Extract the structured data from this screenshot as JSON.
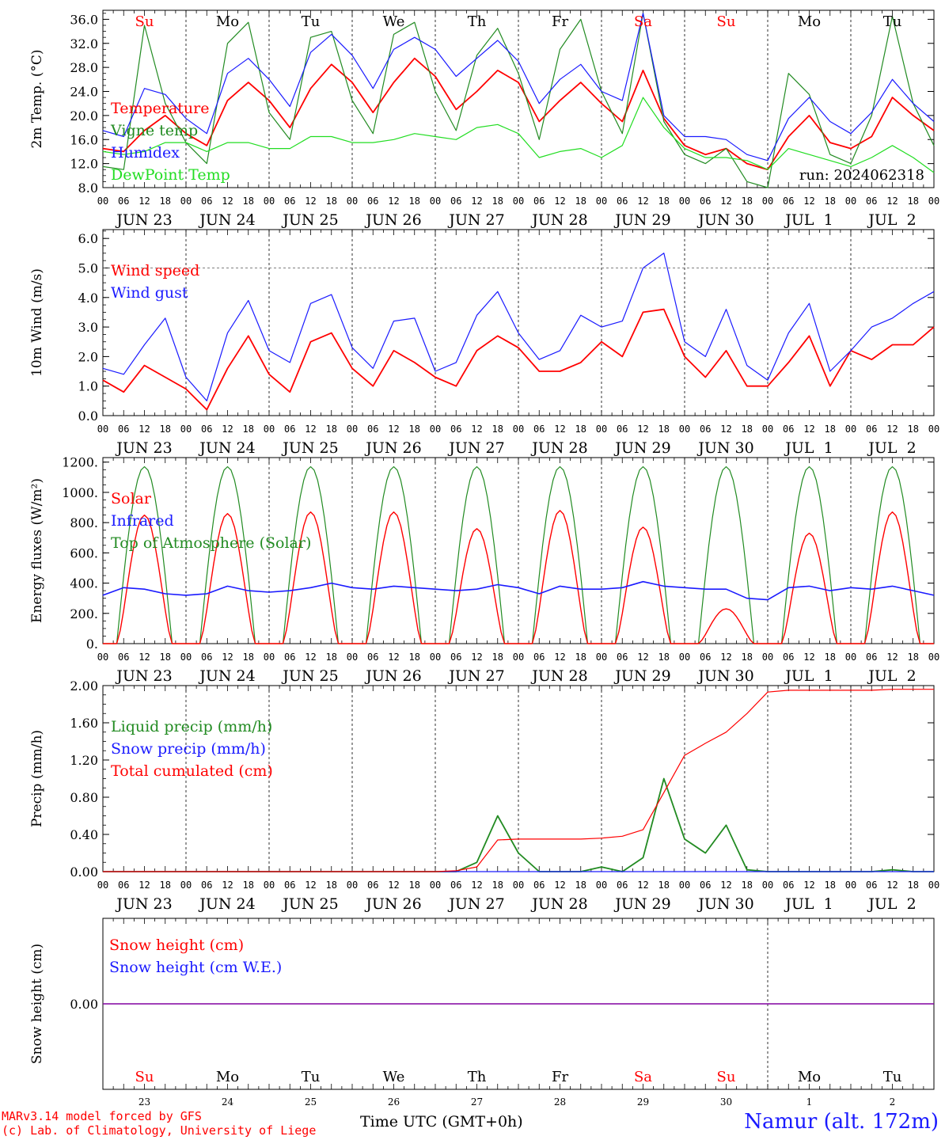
{
  "header": {
    "days": [
      {
        "abbr": "Su",
        "color": "#ff0000"
      },
      {
        "abbr": "Mo",
        "color": "#000000"
      },
      {
        "abbr": "Tu",
        "color": "#000000"
      },
      {
        "abbr": "We",
        "color": "#000000"
      },
      {
        "abbr": "Th",
        "color": "#000000"
      },
      {
        "abbr": "Fr",
        "color": "#000000"
      },
      {
        "abbr": "Sa",
        "color": "#ff0000"
      },
      {
        "abbr": "Su",
        "color": "#ff0000"
      },
      {
        "abbr": "Mo",
        "color": "#000000"
      },
      {
        "abbr": "Tu",
        "color": "#000000"
      }
    ],
    "date_labels": [
      "JUN 23",
      "JUN 24",
      "JUN 25",
      "JUN 26",
      "JUN 27",
      "JUN 28",
      "JUN 29",
      "JUN 30",
      "JUL  1",
      "JUL  2"
    ],
    "hour_ticks": [
      "00",
      "06",
      "12",
      "18"
    ],
    "day_numbers": [
      "23",
      "24",
      "25",
      "26",
      "27",
      "28",
      "29",
      "30",
      "1",
      "2"
    ]
  },
  "run_label": "run: 2024062318",
  "footer": {
    "credit_line1": "MARv3.14 model forced by GFS",
    "credit_line2": "(c) Lab. of Climatology, University of Liege",
    "xlabel": "Time UTC (GMT+0h)",
    "station": "Namur (alt. 172m)"
  },
  "colors": {
    "red": "#ff0000",
    "darkgreen": "#228b22",
    "blue": "#1a1aff",
    "lightgreen": "#22dd22",
    "purple": "#8000a0",
    "axis": "#000000",
    "grid": "#000000"
  },
  "chart_data": [
    {
      "type": "line",
      "ylabel": "2m Temp. (°C)",
      "ylim": [
        8,
        37.5
      ],
      "yticks": [
        "8.0",
        "12.0",
        "16.0",
        "20.0",
        "24.0",
        "28.0",
        "32.0",
        "36.0"
      ],
      "ytick_values": [
        8,
        12,
        16,
        20,
        24,
        28,
        32,
        36
      ],
      "x_hours": [
        0,
        6,
        12,
        18,
        24,
        30,
        36,
        42,
        48,
        54,
        60,
        66,
        72,
        78,
        84,
        90,
        96,
        102,
        108,
        114,
        120,
        126,
        132,
        138,
        144,
        150,
        156,
        162,
        168,
        174,
        180,
        186,
        192,
        198,
        204,
        210,
        216,
        222,
        228,
        234,
        240
      ],
      "series": [
        {
          "name": "Temperature",
          "color": "#ff0000",
          "values": [
            14.5,
            14.0,
            17.5,
            20.0,
            17.0,
            15.0,
            22.5,
            25.5,
            22.5,
            18.0,
            24.5,
            28.5,
            25.5,
            20.5,
            25.5,
            29.5,
            26.5,
            21.0,
            24.0,
            27.5,
            25.5,
            19.0,
            22.5,
            25.5,
            22.0,
            19.0,
            27.5,
            19.5,
            15.0,
            13.5,
            14.5,
            12.0,
            11.0,
            16.5,
            20.0,
            15.5,
            14.5,
            16.5,
            23.0,
            20.0,
            17.5
          ]
        },
        {
          "name": "Vigne temp",
          "color": "#228b22",
          "values": [
            11.5,
            11.0,
            35.0,
            22.0,
            15.5,
            12.0,
            32.0,
            35.5,
            20.5,
            16.0,
            33.0,
            34.0,
            22.5,
            17.0,
            33.5,
            35.5,
            24.0,
            17.5,
            30.0,
            34.5,
            27.0,
            16.0,
            31.0,
            36.0,
            24.0,
            17.0,
            37.0,
            19.0,
            13.5,
            12.0,
            14.5,
            9.0,
            8.0,
            27.0,
            23.5,
            13.5,
            12.0,
            20.0,
            36.5,
            22.0,
            15.0
          ]
        },
        {
          "name": "Humidex",
          "color": "#1a1aff",
          "values": [
            17.5,
            16.5,
            24.5,
            23.5,
            19.5,
            17.0,
            27.0,
            29.5,
            26.0,
            21.5,
            30.5,
            33.5,
            30.0,
            24.5,
            31.0,
            33.0,
            31.0,
            26.5,
            29.5,
            32.5,
            29.0,
            22.0,
            26.0,
            28.5,
            24.0,
            22.5,
            37.0,
            20.0,
            16.5,
            16.5,
            16.0,
            13.5,
            12.5,
            19.5,
            23.0,
            19.0,
            17.0,
            20.5,
            26.0,
            22.0,
            19.0
          ]
        },
        {
          "name": "DewPoint Temp",
          "color": "#22dd22",
          "values": [
            14.0,
            13.5,
            14.0,
            15.5,
            15.5,
            14.0,
            15.5,
            15.5,
            14.5,
            14.5,
            16.5,
            16.5,
            15.5,
            15.5,
            16.0,
            17.0,
            16.5,
            16.0,
            18.0,
            18.5,
            17.0,
            13.0,
            14.0,
            14.5,
            13.0,
            15.0,
            23.0,
            18.0,
            14.5,
            13.0,
            13.0,
            12.5,
            11.0,
            14.5,
            13.5,
            12.5,
            11.5,
            13.0,
            15.0,
            13.0,
            10.5
          ]
        }
      ]
    },
    {
      "type": "line",
      "ylabel": "10m Wind (m/s)",
      "ylim": [
        0,
        6.3
      ],
      "yticks": [
        "0.0",
        "1.0",
        "2.0",
        "3.0",
        "4.0",
        "5.0",
        "6.0"
      ],
      "ytick_values": [
        0,
        1,
        2,
        3,
        4,
        5,
        6
      ],
      "dashed_hline": 5.0,
      "x_hours": [
        0,
        6,
        12,
        18,
        24,
        30,
        36,
        42,
        48,
        54,
        60,
        66,
        72,
        78,
        84,
        90,
        96,
        102,
        108,
        114,
        120,
        126,
        132,
        138,
        144,
        150,
        156,
        162,
        168,
        174,
        180,
        186,
        192,
        198,
        204,
        210,
        216,
        222,
        228,
        234,
        240
      ],
      "series": [
        {
          "name": "Wind speed",
          "color": "#ff0000",
          "values": [
            1.2,
            0.8,
            1.7,
            1.3,
            0.9,
            0.2,
            1.6,
            2.7,
            1.4,
            0.8,
            2.5,
            2.8,
            1.6,
            1.0,
            2.2,
            1.8,
            1.3,
            1.0,
            2.2,
            2.7,
            2.3,
            1.5,
            1.5,
            1.8,
            2.5,
            2.0,
            3.5,
            3.6,
            2.0,
            1.3,
            2.2,
            1.0,
            1.0,
            1.8,
            2.7,
            1.0,
            2.2,
            1.9,
            2.4,
            2.4,
            3.0
          ]
        },
        {
          "name": "Wind gust",
          "color": "#1a1aff",
          "values": [
            1.6,
            1.4,
            2.4,
            3.3,
            1.3,
            0.5,
            2.8,
            3.9,
            2.2,
            1.8,
            3.8,
            4.1,
            2.3,
            1.6,
            3.2,
            3.3,
            1.5,
            1.8,
            3.4,
            4.2,
            2.8,
            1.9,
            2.2,
            3.4,
            3.0,
            3.2,
            5.0,
            5.5,
            2.5,
            2.0,
            3.6,
            1.7,
            1.2,
            2.8,
            3.8,
            1.5,
            2.2,
            3.0,
            3.3,
            3.8,
            4.2
          ]
        }
      ]
    },
    {
      "type": "line",
      "ylabel": "Energy fluxes (W/m²)",
      "ylim": [
        0,
        1230
      ],
      "yticks": [
        "0.",
        "200.",
        "400.",
        "600.",
        "800.",
        "1000.",
        "1200."
      ],
      "ytick_values": [
        0,
        200,
        400,
        600,
        800,
        1000,
        1200
      ],
      "diurnal": {
        "toa_peak": 1170,
        "solar_peaks": [
          850,
          860,
          870,
          870,
          760,
          880,
          770,
          230,
          730,
          870
        ],
        "infrared_values": [
          320,
          370,
          360,
          330,
          320,
          330,
          380,
          350,
          340,
          350,
          370,
          400,
          370,
          360,
          380,
          370,
          360,
          350,
          360,
          390,
          370,
          330,
          380,
          360,
          360,
          370,
          410,
          380,
          370,
          360,
          360,
          300,
          290,
          370,
          380,
          350,
          370,
          360,
          380,
          350,
          320
        ]
      },
      "series": [
        {
          "name": "Solar",
          "color": "#ff0000"
        },
        {
          "name": "Infrared",
          "color": "#1a1aff"
        },
        {
          "name": "Top of Atmosphere (Solar)",
          "color": "#228b22"
        }
      ]
    },
    {
      "type": "line",
      "ylabel": "Precip (mm/h)",
      "ylim": [
        0,
        2.0
      ],
      "yticks": [
        "0.00",
        "0.40",
        "0.80",
        "1.20",
        "1.60",
        "2.00"
      ],
      "ytick_values": [
        0,
        0.4,
        0.8,
        1.2,
        1.6,
        2.0
      ],
      "x_hours": [
        0,
        6,
        12,
        18,
        24,
        30,
        36,
        42,
        48,
        54,
        60,
        66,
        72,
        78,
        84,
        90,
        96,
        102,
        108,
        114,
        120,
        126,
        132,
        138,
        144,
        150,
        156,
        162,
        168,
        174,
        180,
        186,
        192,
        198,
        204,
        210,
        216,
        222,
        228,
        234,
        240
      ],
      "series": [
        {
          "name": "Liquid precip (mm/h)",
          "color": "#228b22",
          "values": [
            0,
            0,
            0,
            0,
            0,
            0,
            0,
            0,
            0,
            0,
            0,
            0,
            0,
            0,
            0,
            0,
            0,
            0,
            0.1,
            0.6,
            0.2,
            0,
            0,
            0,
            0.05,
            0,
            0.15,
            1.0,
            0.35,
            0.2,
            0.5,
            0.02,
            0,
            0,
            0,
            0,
            0,
            0,
            0.02,
            0,
            0
          ]
        },
        {
          "name": "Snow precip (mm/h)",
          "color": "#1a1aff",
          "values": [
            0,
            0,
            0,
            0,
            0,
            0,
            0,
            0,
            0,
            0,
            0,
            0,
            0,
            0,
            0,
            0,
            0,
            0,
            0,
            0,
            0,
            0,
            0,
            0,
            0,
            0,
            0,
            0,
            0,
            0,
            0,
            0,
            0,
            0,
            0,
            0,
            0,
            0,
            0,
            0,
            0
          ]
        },
        {
          "name": "Total cumulated (cm)",
          "color": "#ff0000",
          "values": [
            0,
            0,
            0,
            0,
            0,
            0,
            0,
            0,
            0,
            0,
            0,
            0,
            0,
            0,
            0,
            0,
            0,
            0.01,
            0.05,
            0.34,
            0.35,
            0.35,
            0.35,
            0.35,
            0.36,
            0.38,
            0.45,
            0.85,
            1.25,
            1.38,
            1.5,
            1.7,
            1.93,
            1.95,
            1.95,
            1.95,
            1.95,
            1.95,
            1.96,
            1.96,
            1.96
          ]
        }
      ]
    },
    {
      "type": "line",
      "ylabel": "Snow height (cm)",
      "ylim": [
        -1,
        1
      ],
      "yticks": [
        "0.00"
      ],
      "ytick_values": [
        0
      ],
      "series": [
        {
          "name": "Snow height (cm)",
          "color": "#ff0000",
          "values": [
            0,
            0
          ]
        },
        {
          "name": "Snow height (cm W.E.)",
          "color": "#1a1aff",
          "values": [
            0,
            0
          ]
        }
      ]
    }
  ]
}
